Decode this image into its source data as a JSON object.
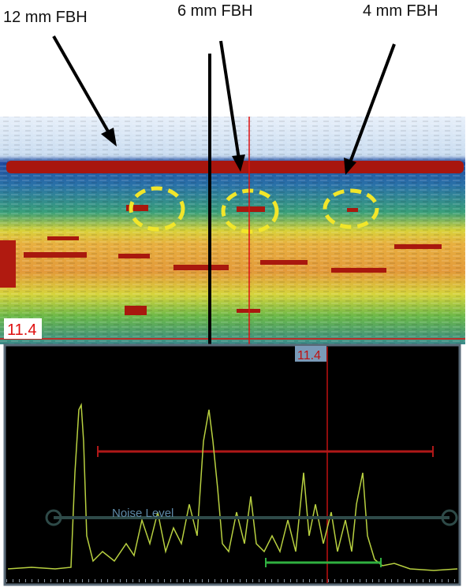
{
  "annotations": [
    "12 mm FBH",
    "6 mm FBH",
    "4 mm FBH"
  ],
  "bscan": {
    "cursor_label": "11.4"
  },
  "ascan": {
    "cursor_label": "11.4",
    "noise_label": "Noise Level"
  }
}
